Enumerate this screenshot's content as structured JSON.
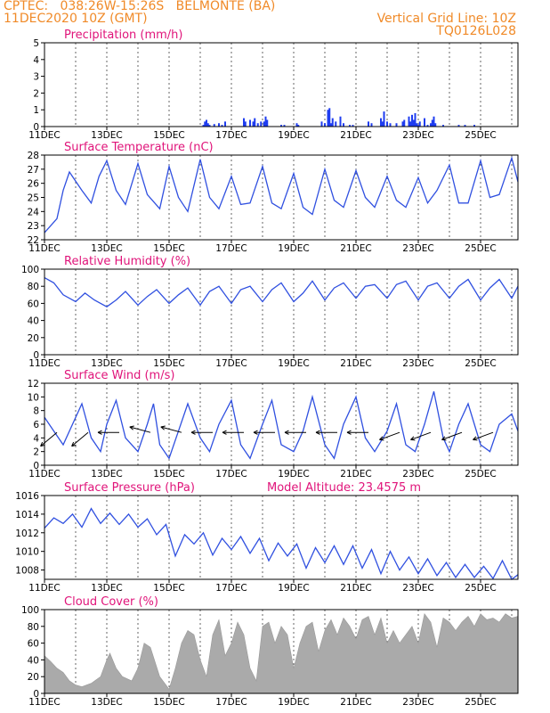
{
  "header": {
    "station": "CPTEC:   038:26W-15:26S   BELMONTE (BA)",
    "init_time": "11DEC2020 10Z (GMT)",
    "grid_note": "Vertical Grid Line: 10Z",
    "model_code": "TQ0126L028"
  },
  "colors": {
    "header": "#f08a28",
    "title": "#e0147a",
    "line": "#3050e0",
    "bar": "#1e3cf0",
    "cloud": "#aaaaaa"
  },
  "x_axis": {
    "tick_labels": [
      "11DEC",
      "13DEC",
      "15DEC",
      "17DEC",
      "19DEC",
      "21DEC",
      "23DEC",
      "25DEC"
    ],
    "tick_days": [
      0,
      2,
      4,
      6,
      8,
      10,
      12,
      14
    ],
    "range_days": [
      0,
      15.2
    ],
    "unit": "days since 11DEC2020 10Z"
  },
  "chart_data": [
    {
      "id": "precip",
      "type": "bar",
      "title": "Precipitation (mm/h)",
      "ylim": [
        0,
        5
      ],
      "yticks": [
        0,
        1,
        2,
        3,
        4,
        5
      ],
      "grid": "vertical-dotted",
      "x_days": [
        5.1,
        5.15,
        5.2,
        5.25,
        5.3,
        5.45,
        5.6,
        5.7,
        5.8,
        6.4,
        6.45,
        6.6,
        6.7,
        6.75,
        6.85,
        6.95,
        7.05,
        7.1,
        7.15,
        7.6,
        7.7,
        8.1,
        8.15,
        8.9,
        9.0,
        9.1,
        9.15,
        9.2,
        9.25,
        9.35,
        9.5,
        9.6,
        9.8,
        9.9,
        10.4,
        10.5,
        10.8,
        10.85,
        10.9,
        11.0,
        11.1,
        11.3,
        11.5,
        11.55,
        11.7,
        11.75,
        11.8,
        11.85,
        11.9,
        11.95,
        12.0,
        12.05,
        12.2,
        12.3,
        12.4,
        12.45,
        12.5,
        12.55,
        12.8,
        13.3,
        13.5,
        13.8
      ],
      "values": [
        0.1,
        0.3,
        0.4,
        0.2,
        0.1,
        0.15,
        0.2,
        0.1,
        0.3,
        0.5,
        0.3,
        0.4,
        0.3,
        0.5,
        0.2,
        0.3,
        0.3,
        0.6,
        0.4,
        0.1,
        0.1,
        0.2,
        0.1,
        0.3,
        0.2,
        1.0,
        1.1,
        0.2,
        0.5,
        0.3,
        0.6,
        0.2,
        0.1,
        0.1,
        0.3,
        0.2,
        0.5,
        0.3,
        0.9,
        0.3,
        0.2,
        0.2,
        0.3,
        0.4,
        0.6,
        0.3,
        0.7,
        0.4,
        0.8,
        0.2,
        0.1,
        0.3,
        0.5,
        0.1,
        0.2,
        0.4,
        0.6,
        0.2,
        0.1,
        0.1,
        0.1,
        0.1
      ]
    },
    {
      "id": "temp",
      "type": "line",
      "title": "Surface Temperature (nC)",
      "ylim": [
        22,
        28
      ],
      "yticks": [
        22,
        23,
        24,
        25,
        26,
        27,
        28
      ],
      "grid": "vertical-dotted",
      "x_days": [
        0,
        0.2,
        0.4,
        0.6,
        0.8,
        1.2,
        1.5,
        1.75,
        2.0,
        2.3,
        2.6,
        3.0,
        3.3,
        3.7,
        4.0,
        4.3,
        4.6,
        5.0,
        5.3,
        5.6,
        6.0,
        6.3,
        6.6,
        7.0,
        7.3,
        7.6,
        8.0,
        8.3,
        8.6,
        9.0,
        9.3,
        9.6,
        10.0,
        10.3,
        10.6,
        11.0,
        11.3,
        11.6,
        12.0,
        12.3,
        12.6,
        13.0,
        13.3,
        13.6,
        14.0,
        14.3,
        14.6,
        15.0,
        15.2
      ],
      "values": [
        22.5,
        23.0,
        23.5,
        25.5,
        26.8,
        25.5,
        24.6,
        26.5,
        27.6,
        25.5,
        24.5,
        27.4,
        25.2,
        24.2,
        27.2,
        25.0,
        24.0,
        27.7,
        25.0,
        24.2,
        26.5,
        24.5,
        24.6,
        27.2,
        24.6,
        24.2,
        26.7,
        24.3,
        23.8,
        27.0,
        24.8,
        24.3,
        26.9,
        25.0,
        24.3,
        26.5,
        24.8,
        24.3,
        26.4,
        24.6,
        25.5,
        27.3,
        24.6,
        24.6,
        27.6,
        25.0,
        25.2,
        27.8,
        26.1
      ]
    },
    {
      "id": "rh",
      "type": "line",
      "title": "Relative Humidity (%)",
      "ylim": [
        0,
        100
      ],
      "yticks": [
        0,
        20,
        40,
        60,
        80,
        100
      ],
      "grid": "vertical-dotted",
      "x_days": [
        0,
        0.3,
        0.6,
        1.0,
        1.3,
        1.6,
        2.0,
        2.3,
        2.6,
        3.0,
        3.3,
        3.6,
        4.0,
        4.3,
        4.6,
        5.0,
        5.3,
        5.6,
        6.0,
        6.3,
        6.6,
        7.0,
        7.3,
        7.6,
        8.0,
        8.3,
        8.6,
        9.0,
        9.3,
        9.6,
        10.0,
        10.3,
        10.6,
        11.0,
        11.3,
        11.6,
        12.0,
        12.3,
        12.6,
        13.0,
        13.3,
        13.6,
        14.0,
        14.3,
        14.6,
        15.0,
        15.2
      ],
      "values": [
        90,
        84,
        70,
        62,
        72,
        64,
        56,
        64,
        74,
        58,
        68,
        76,
        60,
        70,
        78,
        58,
        74,
        80,
        60,
        76,
        80,
        62,
        76,
        84,
        62,
        72,
        86,
        64,
        78,
        84,
        66,
        80,
        82,
        66,
        82,
        86,
        64,
        80,
        84,
        66,
        80,
        88,
        64,
        78,
        88,
        66,
        80
      ]
    },
    {
      "id": "wind",
      "type": "line",
      "title": "Surface Wind (m/s)",
      "ylim": [
        0,
        12
      ],
      "yticks": [
        0,
        2,
        4,
        6,
        8,
        10,
        12
      ],
      "grid": "vertical-dotted",
      "x_days": [
        0,
        0.3,
        0.6,
        0.9,
        1.2,
        1.5,
        1.8,
        2.0,
        2.3,
        2.6,
        3.0,
        3.3,
        3.5,
        3.7,
        4.0,
        4.3,
        4.6,
        5.0,
        5.3,
        5.6,
        6.0,
        6.3,
        6.6,
        7.0,
        7.3,
        7.6,
        8.0,
        8.3,
        8.6,
        9.0,
        9.3,
        9.6,
        10.0,
        10.3,
        10.6,
        11.0,
        11.3,
        11.6,
        11.9,
        12.2,
        12.5,
        12.8,
        13.0,
        13.3,
        13.6,
        14.0,
        14.3,
        14.6,
        15.0,
        15.2
      ],
      "values": [
        7,
        5,
        3,
        6,
        9,
        4,
        2,
        6,
        9.5,
        4,
        2,
        6,
        9,
        3,
        1,
        5,
        9,
        4,
        2,
        6,
        9.5,
        3,
        1,
        6,
        9.5,
        3,
        2,
        5,
        10,
        3,
        1,
        6,
        10,
        4,
        2,
        5,
        9,
        3,
        2,
        6,
        10.8,
        4,
        2,
        6,
        9,
        3,
        2,
        6,
        7.5,
        5
      ],
      "arrows_days": [
        0.4,
        1.4,
        2.4,
        3.4,
        4.4,
        5.4,
        6.4,
        7.4,
        8.4,
        9.4,
        10.4,
        11.4,
        12.4,
        13.4,
        14.4
      ],
      "arrows_dir": [
        "SW",
        "SW",
        "W",
        "WNW",
        "WNW",
        "W",
        "W",
        "W",
        "W",
        "W",
        "W",
        "WSW",
        "WSW",
        "WSW",
        "WSW"
      ]
    },
    {
      "id": "press",
      "type": "line",
      "title": "Surface Pressure (hPa)",
      "annotation": "Model Altitude: 23.4575 m",
      "ylim": [
        1007,
        1016
      ],
      "yticks": [
        1008,
        1010,
        1012,
        1014,
        1016
      ],
      "grid": "vertical-dotted",
      "x_days": [
        0,
        0.3,
        0.6,
        0.9,
        1.2,
        1.5,
        1.8,
        2.1,
        2.4,
        2.7,
        3.0,
        3.3,
        3.6,
        3.9,
        4.2,
        4.5,
        4.8,
        5.1,
        5.4,
        5.7,
        6.0,
        6.3,
        6.6,
        6.9,
        7.2,
        7.5,
        7.8,
        8.1,
        8.4,
        8.7,
        9.0,
        9.3,
        9.6,
        9.9,
        10.2,
        10.5,
        10.8,
        11.1,
        11.4,
        11.7,
        12.0,
        12.3,
        12.6,
        12.9,
        13.2,
        13.5,
        13.8,
        14.1,
        14.4,
        14.7,
        15.0,
        15.2
      ],
      "values": [
        1012.5,
        1013.6,
        1013,
        1014.0,
        1012.6,
        1014.6,
        1013.0,
        1014.1,
        1012.9,
        1014.0,
        1012.6,
        1013.5,
        1011.8,
        1012.9,
        1009.5,
        1011.8,
        1010.8,
        1012.0,
        1009.6,
        1011.4,
        1010.2,
        1011.6,
        1009.8,
        1011.4,
        1009.0,
        1010.9,
        1009.5,
        1010.8,
        1008.2,
        1010.4,
        1008.8,
        1010.6,
        1008.6,
        1010.6,
        1008.2,
        1010.2,
        1007.6,
        1010.0,
        1008.0,
        1009.4,
        1007.6,
        1009.2,
        1007.4,
        1008.8,
        1007.2,
        1008.6,
        1007.2,
        1008.4,
        1007.1,
        1009.0,
        1007.0,
        1007.5
      ]
    },
    {
      "id": "cloud",
      "type": "area",
      "title": "Cloud Cover (%)",
      "ylim": [
        0,
        100
      ],
      "yticks": [
        0,
        20,
        40,
        60,
        80,
        100
      ],
      "grid": "vertical-dotted",
      "x_days": [
        0,
        0.2,
        0.4,
        0.6,
        0.8,
        1.0,
        1.2,
        1.5,
        1.8,
        2.0,
        2.1,
        2.3,
        2.5,
        2.8,
        3.0,
        3.2,
        3.4,
        3.7,
        3.9,
        4.0,
        4.2,
        4.4,
        4.6,
        4.8,
        5.0,
        5.2,
        5.4,
        5.6,
        5.8,
        6.0,
        6.2,
        6.4,
        6.6,
        6.8,
        7.0,
        7.2,
        7.4,
        7.6,
        7.8,
        8.0,
        8.2,
        8.4,
        8.6,
        8.8,
        9.0,
        9.2,
        9.4,
        9.6,
        9.8,
        10.0,
        10.2,
        10.4,
        10.6,
        10.8,
        11.0,
        11.2,
        11.4,
        11.6,
        11.8,
        12.0,
        12.2,
        12.4,
        12.6,
        12.8,
        13.0,
        13.2,
        13.4,
        13.6,
        13.8,
        14.0,
        14.2,
        14.4,
        14.6,
        14.8,
        15.0,
        15.2
      ],
      "values": [
        45,
        38,
        30,
        25,
        15,
        10,
        8,
        12,
        20,
        40,
        48,
        30,
        20,
        15,
        30,
        60,
        55,
        20,
        10,
        5,
        30,
        60,
        75,
        70,
        40,
        20,
        70,
        88,
        45,
        60,
        85,
        70,
        30,
        15,
        80,
        85,
        60,
        80,
        70,
        30,
        60,
        80,
        85,
        50,
        75,
        88,
        70,
        90,
        80,
        65,
        88,
        92,
        70,
        90,
        60,
        75,
        60,
        70,
        80,
        60,
        95,
        85,
        55,
        90,
        85,
        75,
        85,
        92,
        80,
        95,
        88,
        90,
        85,
        95,
        90,
        92
      ]
    }
  ]
}
